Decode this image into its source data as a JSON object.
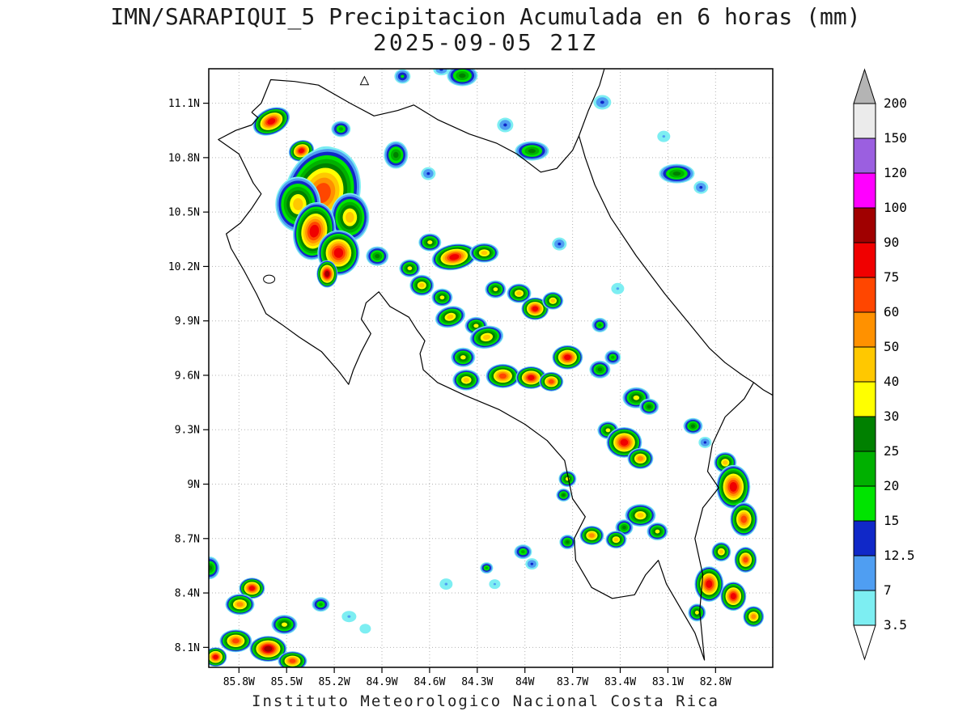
{
  "title": {
    "line1": "IMN/SARAPIQUI_5 Precipitacion Acumulada en 6 horas (mm)",
    "line2": "2025-09-05 21Z"
  },
  "footer": "Instituto Meteorologico Nacional Costa Rica",
  "chart_data": {
    "type": "heatmap",
    "title": "IMN/SARAPIQUI_5 Precipitacion Acumulada en 6 horas (mm)",
    "valid_time": "2025-09-05 21Z",
    "units": "mm",
    "region": "Costa Rica",
    "x_axis": {
      "ticks": [
        "85.8W",
        "85.5W",
        "85.2W",
        "84.9W",
        "84.6W",
        "84.3W",
        "84W",
        "83.7W",
        "83.4W",
        "83.1W",
        "82.8W"
      ]
    },
    "y_axis": {
      "ticks": [
        "11.1N",
        "10.8N",
        "10.5N",
        "10.2N",
        "9.9N",
        "9.6N",
        "9.3N",
        "9N",
        "8.7N",
        "8.4N",
        "8.1N"
      ]
    },
    "lon_range": [
      85.99,
      82.44
    ],
    "lat_range": [
      7.99,
      11.29
    ],
    "grid": true,
    "colorbar": {
      "tick_labels": [
        "200",
        "150",
        "120",
        "100",
        "90",
        "75",
        "60",
        "50",
        "40",
        "30",
        "25",
        "20",
        "15",
        "12.5",
        "7",
        "3.5"
      ],
      "levels_ascending": [
        3.5,
        7,
        12.5,
        15,
        20,
        25,
        30,
        40,
        50,
        60,
        75,
        90,
        100,
        120,
        150,
        200
      ],
      "colors_ascending": [
        "#7deef2",
        "#4f9ef2",
        "#1028c8",
        "#00e400",
        "#00b000",
        "#008000",
        "#ffff00",
        "#ffc800",
        "#ff9100",
        "#ff4600",
        "#f00000",
        "#a00000",
        "#ff00ff",
        "#9b5fe0",
        "#ebebeb"
      ],
      "over_color": "#b4b4b4",
      "under_color": "#ffffff"
    },
    "cells_format": [
      "lon_w",
      "lat_n",
      "max_mm",
      "rx_px",
      "ry_px",
      "rot_deg"
    ],
    "cells": [
      [
        85.596,
        11.0,
        75,
        24,
        16,
        -25
      ],
      [
        85.407,
        10.838,
        75,
        16,
        13,
        -20
      ],
      [
        85.158,
        10.958,
        20,
        12,
        10,
        0
      ],
      [
        84.812,
        10.815,
        25,
        15,
        17,
        0
      ],
      [
        84.608,
        10.712,
        12.5,
        9,
        8,
        0
      ],
      [
        84.394,
        11.252,
        25,
        19,
        13,
        0
      ],
      [
        84.771,
        11.248,
        15,
        10,
        9,
        0
      ],
      [
        84.526,
        11.285,
        12.5,
        10,
        7,
        0
      ],
      [
        84.124,
        10.98,
        12.5,
        10,
        9,
        0
      ],
      [
        83.956,
        10.837,
        25,
        21,
        12,
        0
      ],
      [
        83.513,
        11.105,
        12.5,
        11,
        9,
        0
      ],
      [
        83.126,
        10.917,
        7,
        8,
        7,
        0
      ],
      [
        83.044,
        10.712,
        25,
        22,
        12,
        0
      ],
      [
        82.892,
        10.636,
        12.5,
        9,
        8,
        0
      ],
      [
        85.224,
        10.766,
        40,
        26,
        20,
        30
      ],
      [
        85.275,
        10.605,
        60,
        46,
        58,
        20
      ],
      [
        85.428,
        10.543,
        40,
        28,
        34,
        0
      ],
      [
        85.102,
        10.471,
        40,
        24,
        30,
        0
      ],
      [
        85.326,
        10.395,
        75,
        26,
        36,
        10
      ],
      [
        85.173,
        10.275,
        75,
        26,
        28,
        0
      ],
      [
        85.245,
        10.159,
        90,
        13,
        17,
        0
      ],
      [
        84.929,
        10.257,
        25,
        14,
        12,
        0
      ],
      [
        84.598,
        10.333,
        30,
        14,
        11,
        0
      ],
      [
        84.445,
        10.252,
        75,
        28,
        16,
        -10
      ],
      [
        84.256,
        10.275,
        40,
        18,
        12,
        0
      ],
      [
        84.725,
        10.19,
        30,
        13,
        11,
        0
      ],
      [
        84.649,
        10.096,
        40,
        15,
        13,
        0
      ],
      [
        84.521,
        10.029,
        30,
        13,
        11,
        0
      ],
      [
        84.47,
        9.922,
        40,
        19,
        13,
        -15
      ],
      [
        84.307,
        9.873,
        30,
        14,
        11,
        0
      ],
      [
        84.185,
        10.074,
        30,
        13,
        11,
        0
      ],
      [
        84.037,
        10.052,
        40,
        15,
        12,
        0
      ],
      [
        83.936,
        9.967,
        75,
        17,
        14,
        0
      ],
      [
        83.824,
        10.011,
        40,
        13,
        11,
        0
      ],
      [
        83.783,
        10.324,
        12.5,
        9,
        8,
        0
      ],
      [
        83.416,
        10.078,
        7,
        8,
        7,
        0
      ],
      [
        83.528,
        9.877,
        20,
        10,
        9,
        0
      ],
      [
        84.241,
        9.81,
        40,
        21,
        14,
        -10
      ],
      [
        84.389,
        9.699,
        30,
        15,
        12,
        0
      ],
      [
        84.369,
        9.574,
        40,
        17,
        13,
        0
      ],
      [
        84.139,
        9.596,
        60,
        21,
        15,
        0
      ],
      [
        83.961,
        9.587,
        75,
        19,
        14,
        0
      ],
      [
        83.834,
        9.565,
        60,
        15,
        12,
        0
      ],
      [
        83.732,
        9.699,
        75,
        19,
        15,
        0
      ],
      [
        83.528,
        9.632,
        25,
        13,
        11,
        0
      ],
      [
        83.447,
        9.699,
        20,
        10,
        9,
        0
      ],
      [
        83.299,
        9.476,
        30,
        17,
        13,
        0
      ],
      [
        83.218,
        9.427,
        25,
        12,
        10,
        0
      ],
      [
        83.477,
        9.297,
        30,
        13,
        11,
        0
      ],
      [
        83.375,
        9.23,
        75,
        22,
        19,
        0
      ],
      [
        83.273,
        9.141,
        50,
        16,
        13,
        0
      ],
      [
        82.942,
        9.32,
        25,
        12,
        10,
        0
      ],
      [
        82.866,
        9.23,
        12.5,
        8,
        7,
        0
      ],
      [
        82.739,
        9.119,
        40,
        14,
        13,
        0
      ],
      [
        82.688,
        8.985,
        75,
        21,
        27,
        0
      ],
      [
        82.622,
        8.806,
        60,
        17,
        21,
        0
      ],
      [
        83.273,
        8.828,
        40,
        19,
        14,
        0
      ],
      [
        83.166,
        8.739,
        30,
        13,
        11,
        0
      ],
      [
        83.375,
        8.761,
        25,
        11,
        10,
        0
      ],
      [
        83.732,
        9.029,
        30,
        11,
        10,
        0
      ],
      [
        83.757,
        8.94,
        25,
        9,
        8,
        0
      ],
      [
        83.579,
        8.717,
        50,
        15,
        12,
        0
      ],
      [
        83.426,
        8.694,
        40,
        13,
        11,
        0
      ],
      [
        83.732,
        8.681,
        25,
        10,
        9,
        0
      ],
      [
        84.012,
        8.627,
        20,
        11,
        9,
        0
      ],
      [
        83.956,
        8.56,
        12.5,
        8,
        7,
        0
      ],
      [
        84.241,
        8.538,
        20,
        8,
        7,
        0
      ],
      [
        84.19,
        8.449,
        7,
        7,
        6,
        0
      ],
      [
        84.496,
        8.449,
        7,
        8,
        7,
        0
      ],
      [
        85.107,
        8.27,
        7,
        9,
        7,
        0
      ],
      [
        85.005,
        8.203,
        3.5,
        7,
        6,
        0
      ],
      [
        82.764,
        8.627,
        40,
        12,
        12,
        0
      ],
      [
        82.611,
        8.583,
        60,
        14,
        16,
        0
      ],
      [
        82.841,
        8.449,
        75,
        18,
        22,
        0
      ],
      [
        82.688,
        8.382,
        75,
        16,
        18,
        0
      ],
      [
        82.561,
        8.27,
        50,
        13,
        13,
        0
      ],
      [
        82.917,
        8.292,
        30,
        11,
        11,
        0
      ],
      [
        85.983,
        8.538,
        25,
        12,
        14,
        0
      ],
      [
        85.718,
        8.426,
        75,
        16,
        13,
        0
      ],
      [
        85.794,
        8.337,
        50,
        18,
        13,
        0
      ],
      [
        85.285,
        8.337,
        20,
        11,
        9,
        0
      ],
      [
        85.514,
        8.226,
        30,
        16,
        12,
        0
      ],
      [
        85.82,
        8.136,
        60,
        20,
        14,
        0
      ],
      [
        85.616,
        8.092,
        90,
        23,
        16,
        0
      ],
      [
        85.463,
        8.025,
        60,
        18,
        12,
        0
      ],
      [
        85.947,
        8.047,
        75,
        14,
        12,
        0
      ]
    ],
    "geo": {
      "costa_rica": [
        [
          85.72,
          11.05
        ],
        [
          85.66,
          11.1
        ],
        [
          85.6,
          11.23
        ],
        [
          85.45,
          11.22
        ],
        [
          85.3,
          11.2
        ],
        [
          85.1,
          11.1
        ],
        [
          84.95,
          11.03
        ],
        [
          84.8,
          11.06
        ],
        [
          84.7,
          11.09
        ],
        [
          84.55,
          11.01
        ],
        [
          84.35,
          10.93
        ],
        [
          84.18,
          10.88
        ],
        [
          84.05,
          10.82
        ],
        [
          83.9,
          10.72
        ],
        [
          83.8,
          10.74
        ],
        [
          83.7,
          10.84
        ],
        [
          83.66,
          10.92
        ],
        [
          83.62,
          10.8
        ],
        [
          83.56,
          10.65
        ],
        [
          83.46,
          10.47
        ],
        [
          83.3,
          10.26
        ],
        [
          83.12,
          10.05
        ],
        [
          82.97,
          9.89
        ],
        [
          82.84,
          9.75
        ],
        [
          82.74,
          9.67
        ],
        [
          82.63,
          9.6
        ],
        [
          82.56,
          9.56
        ],
        [
          82.62,
          9.47
        ],
        [
          82.74,
          9.37
        ],
        [
          82.82,
          9.22
        ],
        [
          82.85,
          9.07
        ],
        [
          82.78,
          8.98
        ],
        [
          82.88,
          8.87
        ],
        [
          82.93,
          8.7
        ],
        [
          82.88,
          8.5
        ],
        [
          82.9,
          8.3
        ],
        [
          82.87,
          8.03
        ],
        [
          82.93,
          8.18
        ],
        [
          83.03,
          8.33
        ],
        [
          83.11,
          8.45
        ],
        [
          83.16,
          8.58
        ],
        [
          83.24,
          8.5
        ],
        [
          83.31,
          8.39
        ],
        [
          83.45,
          8.37
        ],
        [
          83.58,
          8.43
        ],
        [
          83.68,
          8.58
        ],
        [
          83.69,
          8.7
        ],
        [
          83.62,
          8.82
        ],
        [
          83.7,
          8.92
        ],
        [
          83.75,
          9.13
        ],
        [
          83.86,
          9.24
        ],
        [
          84.0,
          9.33
        ],
        [
          84.16,
          9.41
        ],
        [
          84.38,
          9.49
        ],
        [
          84.55,
          9.56
        ],
        [
          84.64,
          9.63
        ],
        [
          84.66,
          9.72
        ],
        [
          84.63,
          9.79
        ],
        [
          84.68,
          9.85
        ],
        [
          84.73,
          9.92
        ],
        [
          84.85,
          9.98
        ],
        [
          84.92,
          10.06
        ],
        [
          85.0,
          10.0
        ],
        [
          85.03,
          9.91
        ],
        [
          84.97,
          9.83
        ],
        [
          85.03,
          9.73
        ],
        [
          85.08,
          9.63
        ],
        [
          85.11,
          9.55
        ],
        [
          85.17,
          9.62
        ],
        [
          85.28,
          9.73
        ],
        [
          85.42,
          9.81
        ],
        [
          85.53,
          9.88
        ],
        [
          85.63,
          9.94
        ],
        [
          85.69,
          10.05
        ],
        [
          85.77,
          10.18
        ],
        [
          85.85,
          10.3
        ],
        [
          85.88,
          10.38
        ],
        [
          85.79,
          10.44
        ],
        [
          85.72,
          10.52
        ],
        [
          85.66,
          10.6
        ],
        [
          85.71,
          10.66
        ],
        [
          85.8,
          10.82
        ],
        [
          85.93,
          10.9
        ],
        [
          85.82,
          10.95
        ],
        [
          85.72,
          10.98
        ],
        [
          85.68,
          11.02
        ],
        [
          85.72,
          11.05
        ]
      ],
      "nicaragua_coast": [
        [
          83.66,
          10.92
        ],
        [
          83.6,
          11.06
        ],
        [
          83.53,
          11.2
        ],
        [
          83.5,
          11.29
        ]
      ],
      "panama_coast": [
        [
          82.56,
          9.56
        ],
        [
          82.5,
          9.52
        ],
        [
          82.44,
          9.49
        ]
      ],
      "inland_water": [
        85.61,
        10.13
      ],
      "island": [
        85.01,
        11.22
      ]
    }
  }
}
